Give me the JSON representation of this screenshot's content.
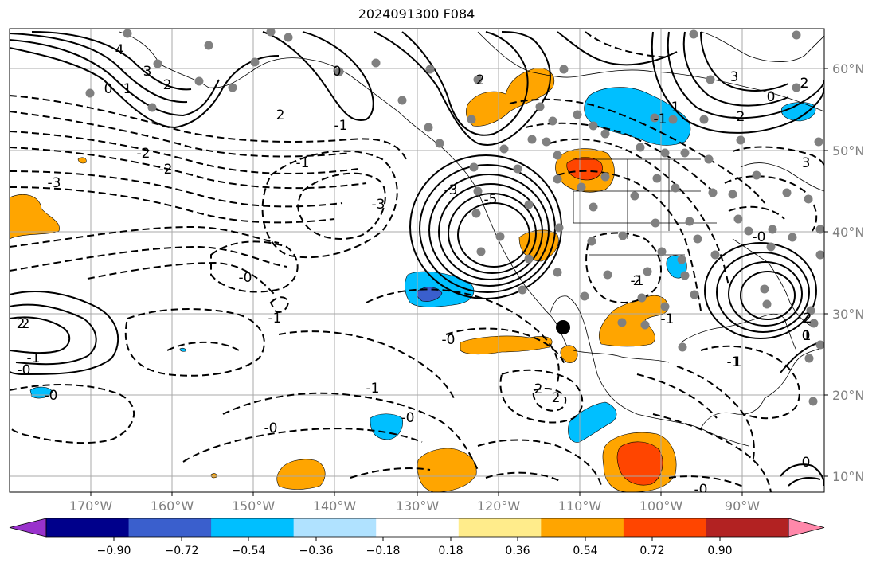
{
  "title": "2024091300 F084",
  "lat_labels": [
    "60°N",
    "50°N",
    "40°N",
    "30°N",
    "20°N",
    "10°N"
  ],
  "lon_labels": [
    "170°W",
    "160°W",
    "150°W",
    "140°W",
    "130°W",
    "120°W",
    "110°W",
    "100°W",
    "90°W"
  ],
  "colorbar": {
    "colors": [
      "#9932cc",
      "#00008b",
      "#3a5fcd",
      "#00bfff",
      "#b0e2ff",
      "#ffffff",
      "#ffec8b",
      "#ffa500",
      "#ff4500",
      "#b22222",
      "#ff88aa"
    ],
    "labels": [
      "−0.90",
      "−0.72",
      "−0.54",
      "−0.36",
      "−0.18",
      "0.18",
      "0.36",
      "0.54",
      "0.72",
      "0.90"
    ]
  },
  "contour_labels": [
    "4",
    "3",
    "2",
    "1",
    "0",
    "2",
    "0",
    "2",
    "1",
    "3",
    "2",
    "3",
    "2",
    "1",
    "0",
    "2",
    "-2",
    "-3",
    "-1",
    "-1",
    "-3",
    "-5",
    "-3",
    "-0",
    "-1",
    "-0",
    "-0",
    "2",
    "-1",
    "-1",
    "-0",
    "-0",
    "-1",
    "-0",
    "2",
    "-0",
    "-1",
    "-2",
    "-2",
    "2",
    "-1",
    "-0",
    "0",
    "-1",
    "2",
    "1",
    "0",
    "2"
  ]
}
